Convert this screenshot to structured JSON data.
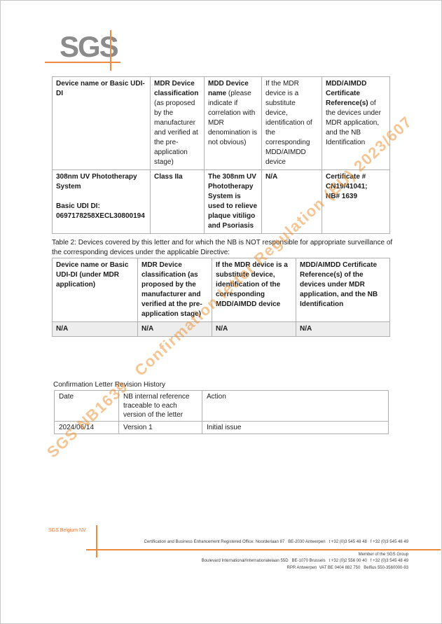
{
  "logo": {
    "text": "SGS"
  },
  "watermark": {
    "text": "SGS NB1639   Confirmation letter Regulation (EU) 2023/607"
  },
  "table1": {
    "headers": [
      {
        "bold": "Device name or  Basic UDI-DI",
        "rest": ""
      },
      {
        "bold": "MDR Device classification",
        "rest": " (as proposed by the manufacturer and verified at the pre-application stage)"
      },
      {
        "bold": "MDD Device name",
        "rest": " (please indicate if correlation with MDR denomination is not obvious)"
      },
      {
        "bold": "",
        "rest": "If the MDR device is a substitute device, identification of the corresponding MDD/AIMDD device"
      },
      {
        "bold": "MDD/AIMDD Certificate Reference(s)",
        "rest": " of the devices under MDR application, and the NB Identification"
      }
    ],
    "row": {
      "device": "308nm UV Phototherapy System\n\nBasic UDI DI:\n0697178258XECL30800194",
      "classification": "Class IIa",
      "mdd_name": "The 308nm UV Phototherapy System is used to relieve plaque vitiligo and Psoriasis",
      "substitute": "N/A",
      "certificate": "Certificate # CN19/41041;\nNB# 1639"
    }
  },
  "table2": {
    "caption": "Table 2: Devices covered by this letter and for which the NB is NOT responsible for appropriate surveillance of the corresponding devices under the applicable Directive:",
    "headers": [
      "Device name or Basic UDI-DI (under MDR application)",
      "MDR Device classification (as proposed by the manufacturer and verified at the pre-application stage)",
      "If the MDR device is a substitute device, identification of the corresponding MDD/AIMDD device",
      "MDD/AIMDD Certificate Reference(s) of the devices under MDR application, and the NB Identification"
    ],
    "row": [
      "N/A",
      "N/A",
      "N/A",
      "N/A"
    ]
  },
  "revision": {
    "title": "Confirmation Letter Revision History",
    "headers": [
      "Date",
      "NB internal reference traceable to each version of the letter",
      "Action"
    ],
    "row": [
      "2024/06/14",
      "Version 1",
      "Initial issue"
    ]
  },
  "footer": {
    "company": "SGS Belgium NV",
    "address_line1": "Certification and Business Enhancement Registered Office: Noorderlaan 87   BE-2030 Antwerpen   t +32 (0)3 545 48 48   f +32 (0)3 545 48 49",
    "address_line2": "Boulevard International/Internationalelaan 55D   BE-1070 Brussels   t +32 (0)2 556 00 40   f +32 (0)3 545 48 49",
    "member": "Member of the SGS Group",
    "registration": "RPR Antwerpen  VAT BE 0404 882 750   Belfius 550-3560000-93"
  },
  "colors": {
    "accent_orange": "#EE8A3C",
    "watermark_orange": "#EC8B2A",
    "logo_gray": "#8B8B8B"
  }
}
